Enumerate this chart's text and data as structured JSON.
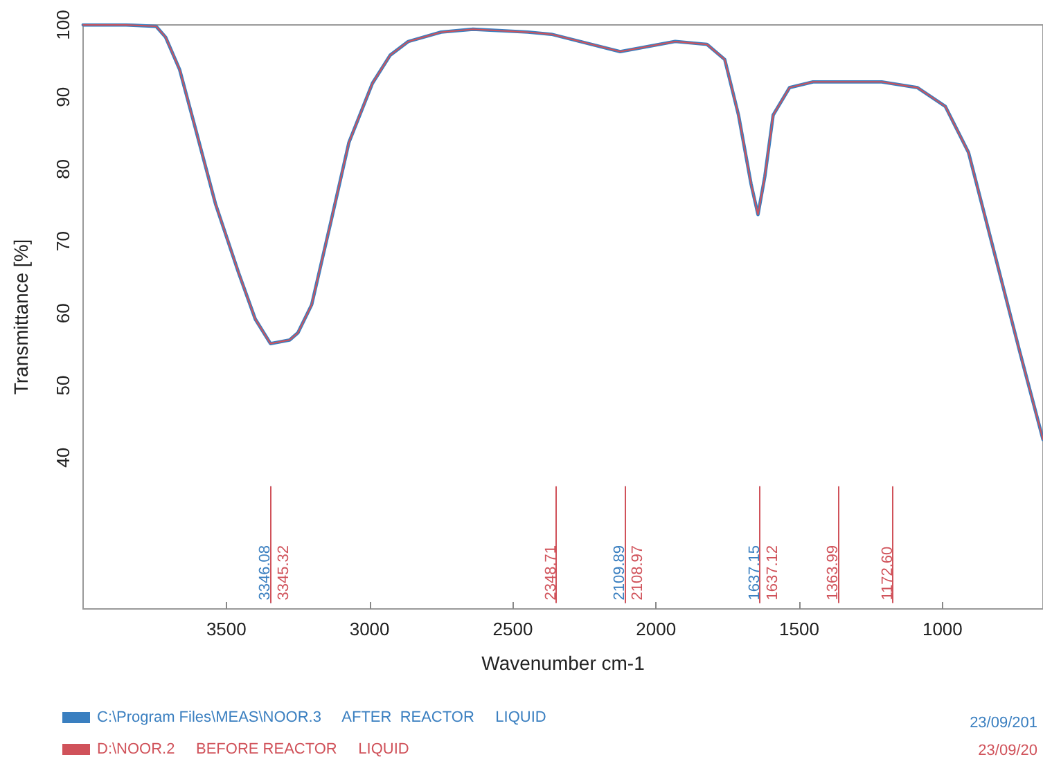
{
  "chart_data": {
    "type": "line",
    "xlabel": "Wavenumber cm-1",
    "ylabel": "Transmittance [%]",
    "xlim": [
      4000,
      649
    ],
    "xticks": [
      3500,
      3000,
      2500,
      2000,
      1500,
      1000
    ],
    "ylim": [
      19,
      100
    ],
    "yticks": [
      40,
      50,
      60,
      70,
      80,
      90,
      100
    ],
    "grid": false,
    "legend": "bottom",
    "marker": "none",
    "line_style": "solid",
    "series": [
      {
        "name": "C:\\Program Files\\MEAS\\NOOR.3     AFTER  REACTOR     LIQUID",
        "color": "#3a7fc0",
        "x": [
          4000,
          3850,
          3745,
          3712,
          3663,
          3615,
          3538,
          3457,
          3399,
          3346,
          3279,
          3250,
          3202,
          3135,
          3072,
          2990,
          2928,
          2865,
          2750,
          2639,
          2447,
          2365,
          2125,
          1933,
          1822,
          1760,
          1712,
          1668,
          1644,
          1620,
          1591,
          1534,
          1452,
          1212,
          1087,
          990,
          909,
          813,
          731,
          649
        ],
        "values": [
          100,
          100,
          99.8,
          98.3,
          93.8,
          86.7,
          75.2,
          65.6,
          59.2,
          55.8,
          56.3,
          57.3,
          61.2,
          72.7,
          83.7,
          91.9,
          95.8,
          97.7,
          99.0,
          99.4,
          99.0,
          98.7,
          96.3,
          97.7,
          97.3,
          95.2,
          87.5,
          77.9,
          73.7,
          79.0,
          87.5,
          91.3,
          92.1,
          92.1,
          91.3,
          88.7,
          82.3,
          67.5,
          54.8,
          42.5
        ]
      },
      {
        "name": "D:\\NOOR.2     BEFORE REACTOR     LIQUID",
        "color": "#d0525a",
        "x": [
          4000,
          3850,
          3745,
          3712,
          3663,
          3615,
          3538,
          3457,
          3399,
          3346,
          3279,
          3250,
          3202,
          3135,
          3072,
          2990,
          2928,
          2865,
          2750,
          2639,
          2447,
          2365,
          2125,
          1933,
          1822,
          1760,
          1712,
          1668,
          1644,
          1620,
          1591,
          1534,
          1452,
          1212,
          1087,
          990,
          909,
          813,
          731,
          649
        ],
        "values": [
          100,
          100,
          99.8,
          98.3,
          93.8,
          86.7,
          75.2,
          65.6,
          59.2,
          55.8,
          56.3,
          57.3,
          61.2,
          72.7,
          83.7,
          91.9,
          95.8,
          97.7,
          99.0,
          99.4,
          99.0,
          98.7,
          96.3,
          97.7,
          97.3,
          95.2,
          87.5,
          77.9,
          73.7,
          79.0,
          87.5,
          91.3,
          92.1,
          92.1,
          91.3,
          88.7,
          82.3,
          67.5,
          54.8,
          42.5
        ]
      }
    ],
    "ref_lines": [
      {
        "axis": "x",
        "value": 3346.08,
        "label": "3346.08",
        "color": "#3a7fc0"
      },
      {
        "axis": "x",
        "value": 3345.32,
        "label": "3345.32",
        "color": "#d0525a"
      },
      {
        "axis": "x",
        "value": 2348.71,
        "label": "2348.71",
        "color": "#d0525a"
      },
      {
        "axis": "x",
        "value": 2109.89,
        "label": "2109.89",
        "color": "#3a7fc0"
      },
      {
        "axis": "x",
        "value": 2108.97,
        "label": "2108.97",
        "color": "#d0525a"
      },
      {
        "axis": "x",
        "value": 1637.15,
        "label": "1637.15",
        "color": "#3a7fc0"
      },
      {
        "axis": "x",
        "value": 1637.12,
        "label": "1637.12",
        "color": "#d0525a"
      },
      {
        "axis": "x",
        "value": 1363.99,
        "label": "1363.99",
        "color": "#d0525a"
      },
      {
        "axis": "x",
        "value": 1172.6,
        "label": "1172.60",
        "color": "#d0525a"
      }
    ],
    "annotations": [
      "23/09/201",
      "23/09/20"
    ]
  }
}
